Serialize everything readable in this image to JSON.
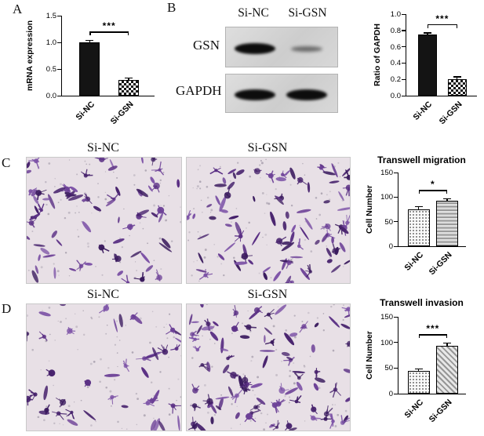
{
  "figure": {
    "panels": {
      "a": {
        "letter": "A"
      },
      "b": {
        "letter": "B"
      },
      "c": {
        "letter": "C"
      },
      "d": {
        "letter": "D"
      }
    },
    "blot": {
      "col_labels": [
        "Si-NC",
        "Si-GSN"
      ],
      "rows": [
        {
          "label": "GSN",
          "band_intensities": [
            "strong",
            "weak"
          ]
        },
        {
          "label": "GAPDH",
          "band_intensities": [
            "strong",
            "strong"
          ]
        }
      ]
    },
    "micrographs": {
      "c": {
        "labels": [
          "Si-NC",
          "Si-GSN"
        ]
      },
      "d": {
        "labels": [
          "Si-NC",
          "Si-GSN"
        ]
      }
    },
    "colors": {
      "stain_purple": "#5a2f84",
      "micro_background": "#e8e0e6",
      "bar_black": "#141414"
    }
  },
  "chart_data": [
    {
      "id": "mrna-expression",
      "type": "bar",
      "title": "",
      "categories": [
        "Si-NC",
        "Si-GSN"
      ],
      "values": [
        1.0,
        0.3
      ],
      "errors": [
        0.04,
        0.03
      ],
      "ylabel": "mRNA expression",
      "xlabel": "",
      "ylim": [
        0,
        1.5
      ],
      "yticks": [
        0,
        0.5,
        1.0,
        1.5
      ],
      "ytick_labels": [
        "0.0",
        "0.5",
        "1.0",
        "1.5"
      ],
      "significance": "***",
      "bar_styles": [
        "solid",
        "checker"
      ],
      "grid": false,
      "legend": "none"
    },
    {
      "id": "gapdh-ratio",
      "type": "bar",
      "title": "",
      "categories": [
        "Si-NC",
        "Si-GSN"
      ],
      "values": [
        0.75,
        0.2
      ],
      "errors": [
        0.02,
        0.03
      ],
      "ylabel": "Ratio of GAPDH",
      "xlabel": "",
      "ylim": [
        0,
        1.0
      ],
      "yticks": [
        0,
        0.2,
        0.4,
        0.6,
        0.8,
        1.0
      ],
      "ytick_labels": [
        "0.0",
        "0.2",
        "0.4",
        "0.6",
        "0.8",
        "1.0"
      ],
      "significance": "***",
      "bar_styles": [
        "solid",
        "checker"
      ],
      "grid": false,
      "legend": "none"
    },
    {
      "id": "transwell-migration",
      "type": "bar",
      "title": "Transwell migration",
      "categories": [
        "Si-NC",
        "Si-GSN"
      ],
      "values": [
        75,
        93
      ],
      "errors": [
        6,
        4
      ],
      "ylabel": "Cell Number",
      "xlabel": "",
      "ylim": [
        0,
        150
      ],
      "yticks": [
        0,
        50,
        100,
        150
      ],
      "ytick_labels": [
        "0",
        "50",
        "100",
        "150"
      ],
      "significance": "*",
      "bar_styles": [
        "dots",
        "hstripes"
      ],
      "grid": false,
      "legend": "none"
    },
    {
      "id": "transwell-invasion",
      "type": "bar",
      "title": "Transwell invasion",
      "categories": [
        "Si-NC",
        "Si-GSN"
      ],
      "values": [
        44,
        93
      ],
      "errors": [
        4,
        6
      ],
      "ylabel": "Cell Number",
      "xlabel": "",
      "ylim": [
        0,
        150
      ],
      "yticks": [
        0,
        50,
        100,
        150
      ],
      "ytick_labels": [
        "0",
        "50",
        "100",
        "150"
      ],
      "significance": "***",
      "bar_styles": [
        "dots",
        "diag"
      ],
      "grid": false,
      "legend": "none"
    }
  ]
}
